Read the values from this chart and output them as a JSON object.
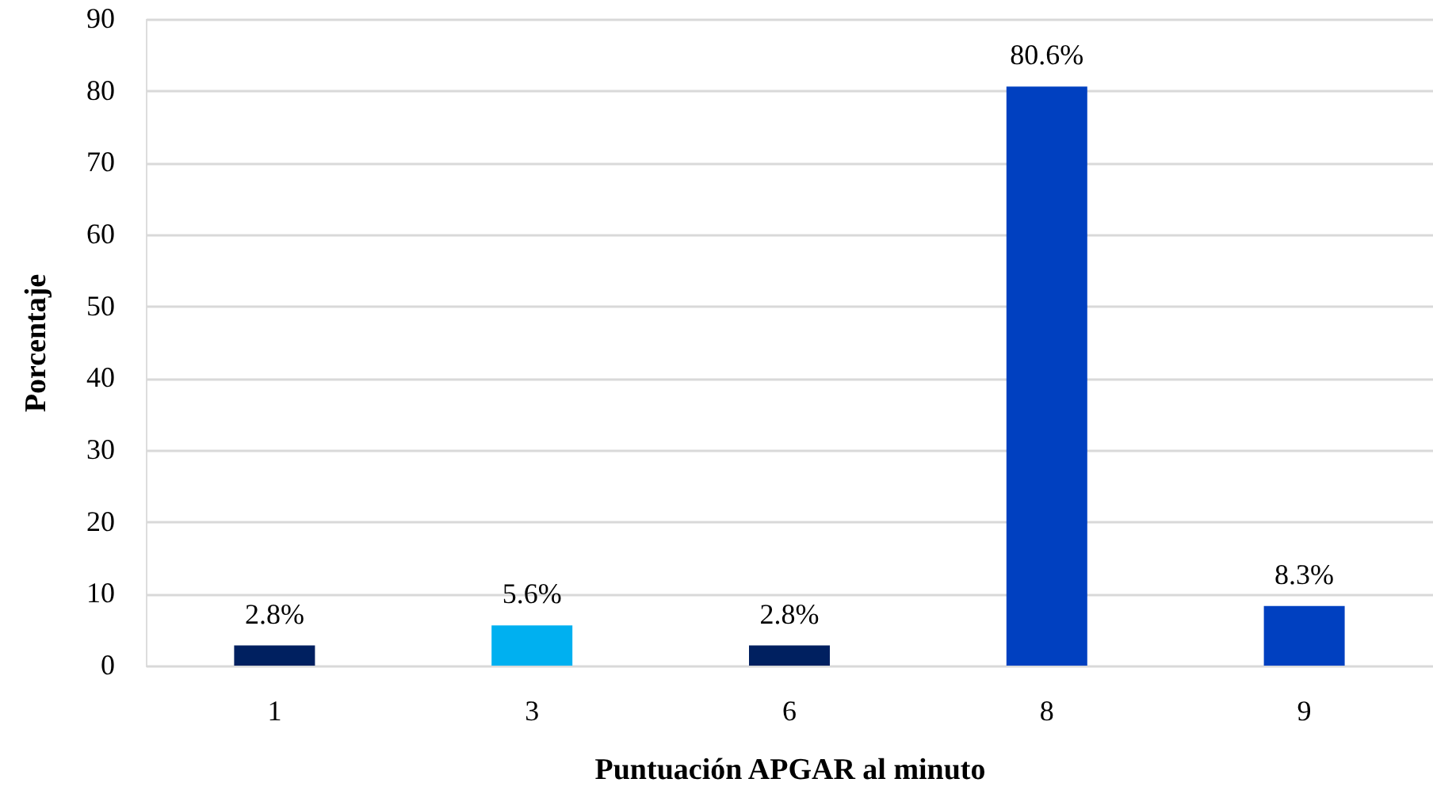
{
  "chart_data": {
    "type": "bar",
    "xlabel": "Puntuación APGAR al minuto",
    "ylabel": "Porcentaje",
    "categories": [
      "1",
      "3",
      "6",
      "8",
      "9"
    ],
    "values": [
      2.8,
      5.6,
      2.8,
      80.6,
      8.3
    ],
    "colors": [
      "#002060",
      "#00b0f0",
      "#002060",
      "#0040c0",
      "#0040c0"
    ],
    "value_labels": [
      "2.8%",
      "5.6%",
      "2.8%",
      "80.6%",
      "8.3%"
    ],
    "ylim": [
      0,
      90
    ],
    "yticks": [
      0,
      10,
      20,
      30,
      40,
      50,
      60,
      70,
      80,
      90
    ],
    "grid": "y"
  }
}
